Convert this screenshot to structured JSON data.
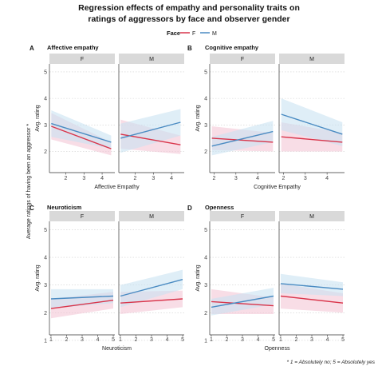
{
  "title_line1": "Regression effects of empathy and personality traits on",
  "title_line2": "ratings of aggressors by face and observer gender",
  "legend": {
    "title": "Face",
    "items": [
      {
        "label": "F",
        "color": "#d9344a"
      },
      {
        "label": "M",
        "color": "#4a8bc2"
      }
    ]
  },
  "y_outer_label": "Average ratings of having been an aggressor *",
  "footnote": "* 1 = Absolutely no; 5 = Absolutely yes",
  "colors": {
    "F": "#d9344a",
    "M": "#4a8bc2",
    "F_band": "#f3c6d6",
    "M_band": "#c9e2f1",
    "strip": "#d9d9d9"
  },
  "chart_data": [
    {
      "letter": "A",
      "title": "Affective empathy",
      "type": "line",
      "xlabel": "Affective Empathy",
      "ylabel": "Avg. rating",
      "xlim": [
        1.1,
        4.7
      ],
      "xticks": [
        "2",
        "3",
        "4"
      ],
      "xtick_values": [
        2,
        3,
        4
      ],
      "ylim": [
        1.2,
        5.3
      ],
      "yticks": [
        "2",
        "3",
        "4",
        "5"
      ],
      "facets": [
        {
          "label": "F",
          "series": [
            {
              "name": "F",
              "x": [
                1.2,
                4.5
              ],
              "y": [
                2.95,
                2.1
              ],
              "lower": [
                2.45,
                1.85
              ],
              "upper": [
                3.45,
                2.35
              ]
            },
            {
              "name": "M",
              "x": [
                1.2,
                4.5
              ],
              "y": [
                3.05,
                2.35
              ],
              "lower": [
                2.55,
                2.1
              ],
              "upper": [
                3.55,
                2.6
              ]
            }
          ]
        },
        {
          "label": "M",
          "series": [
            {
              "name": "F",
              "x": [
                1.2,
                4.5
              ],
              "y": [
                2.65,
                2.25
              ],
              "lower": [
                2.1,
                1.9
              ],
              "upper": [
                3.2,
                2.6
              ]
            },
            {
              "name": "M",
              "x": [
                1.2,
                4.5
              ],
              "y": [
                2.5,
                3.1
              ],
              "lower": [
                1.95,
                2.6
              ],
              "upper": [
                3.05,
                3.6
              ]
            }
          ]
        }
      ]
    },
    {
      "letter": "B",
      "title": "Cognitive empathy",
      "type": "line",
      "xlabel": "Cognitive Empathy",
      "ylabel": "Avg. rating",
      "xlim": [
        1.8,
        4.8
      ],
      "xticks": [
        "2",
        "3",
        "4"
      ],
      "xtick_values": [
        2,
        3,
        4
      ],
      "ylim": [
        1.2,
        5.3
      ],
      "yticks": [
        "2",
        "3",
        "4",
        "5"
      ],
      "facets": [
        {
          "label": "F",
          "series": [
            {
              "name": "F",
              "x": [
                1.9,
                4.7
              ],
              "y": [
                2.5,
                2.35
              ],
              "lower": [
                2.05,
                2.0
              ],
              "upper": [
                2.95,
                2.7
              ]
            },
            {
              "name": "M",
              "x": [
                1.9,
                4.7
              ],
              "y": [
                2.2,
                2.75
              ],
              "lower": [
                1.85,
                2.35
              ],
              "upper": [
                2.55,
                3.15
              ]
            }
          ]
        },
        {
          "label": "M",
          "series": [
            {
              "name": "F",
              "x": [
                1.9,
                4.7
              ],
              "y": [
                2.55,
                2.35
              ],
              "lower": [
                2.0,
                2.0
              ],
              "upper": [
                3.1,
                2.7
              ]
            },
            {
              "name": "M",
              "x": [
                1.9,
                4.7
              ],
              "y": [
                3.4,
                2.65
              ],
              "lower": [
                2.8,
                2.2
              ],
              "upper": [
                4.0,
                3.1
              ]
            }
          ]
        }
      ]
    },
    {
      "letter": "C",
      "title": "Neuroticism",
      "type": "line",
      "xlabel": "Neuroticism",
      "ylabel": "Avg. rating",
      "xlim": [
        0.9,
        5.1
      ],
      "xticks": [
        "1",
        "2",
        "3",
        "4",
        "5"
      ],
      "xtick_values": [
        1,
        2,
        3,
        4,
        5
      ],
      "ylim": [
        1.2,
        5.3
      ],
      "yticks": [
        "1",
        "2",
        "3",
        "4",
        "5"
      ],
      "facets": [
        {
          "label": "F",
          "series": [
            {
              "name": "F",
              "x": [
                1,
                5
              ],
              "y": [
                2.15,
                2.45
              ],
              "lower": [
                1.8,
                2.15
              ],
              "upper": [
                2.5,
                2.75
              ]
            },
            {
              "name": "M",
              "x": [
                1,
                5
              ],
              "y": [
                2.5,
                2.6
              ],
              "lower": [
                2.15,
                2.35
              ],
              "upper": [
                2.85,
                2.85
              ]
            }
          ]
        },
        {
          "label": "M",
          "series": [
            {
              "name": "F",
              "x": [
                1,
                5
              ],
              "y": [
                2.35,
                2.5
              ],
              "lower": [
                1.95,
                2.2
              ],
              "upper": [
                2.75,
                2.8
              ]
            },
            {
              "name": "M",
              "x": [
                1,
                5
              ],
              "y": [
                2.6,
                3.2
              ],
              "lower": [
                2.2,
                2.85
              ],
              "upper": [
                3.0,
                3.55
              ]
            }
          ]
        }
      ]
    },
    {
      "letter": "D",
      "title": "Openness",
      "type": "line",
      "xlabel": "Openness",
      "ylabel": "Avg. rating",
      "xlim": [
        0.9,
        5.1
      ],
      "xticks": [
        "1",
        "2",
        "3",
        "4",
        "5"
      ],
      "xtick_values": [
        1,
        2,
        3,
        4,
        5
      ],
      "ylim": [
        1.2,
        5.3
      ],
      "yticks": [
        "1",
        "2",
        "3",
        "4",
        "5"
      ],
      "facets": [
        {
          "label": "F",
          "series": [
            {
              "name": "F",
              "x": [
                1,
                5
              ],
              "y": [
                2.4,
                2.25
              ],
              "lower": [
                1.95,
                1.95
              ],
              "upper": [
                2.85,
                2.55
              ]
            },
            {
              "name": "M",
              "x": [
                1,
                5
              ],
              "y": [
                2.2,
                2.6
              ],
              "lower": [
                1.9,
                2.3
              ],
              "upper": [
                2.5,
                2.9
              ]
            }
          ]
        },
        {
          "label": "M",
          "series": [
            {
              "name": "F",
              "x": [
                1,
                5
              ],
              "y": [
                2.6,
                2.35
              ],
              "lower": [
                2.15,
                2.0
              ],
              "upper": [
                3.05,
                2.7
              ]
            },
            {
              "name": "M",
              "x": [
                1,
                5
              ],
              "y": [
                3.05,
                2.85
              ],
              "lower": [
                2.7,
                2.6
              ],
              "upper": [
                3.4,
                3.1
              ]
            }
          ]
        }
      ]
    }
  ]
}
